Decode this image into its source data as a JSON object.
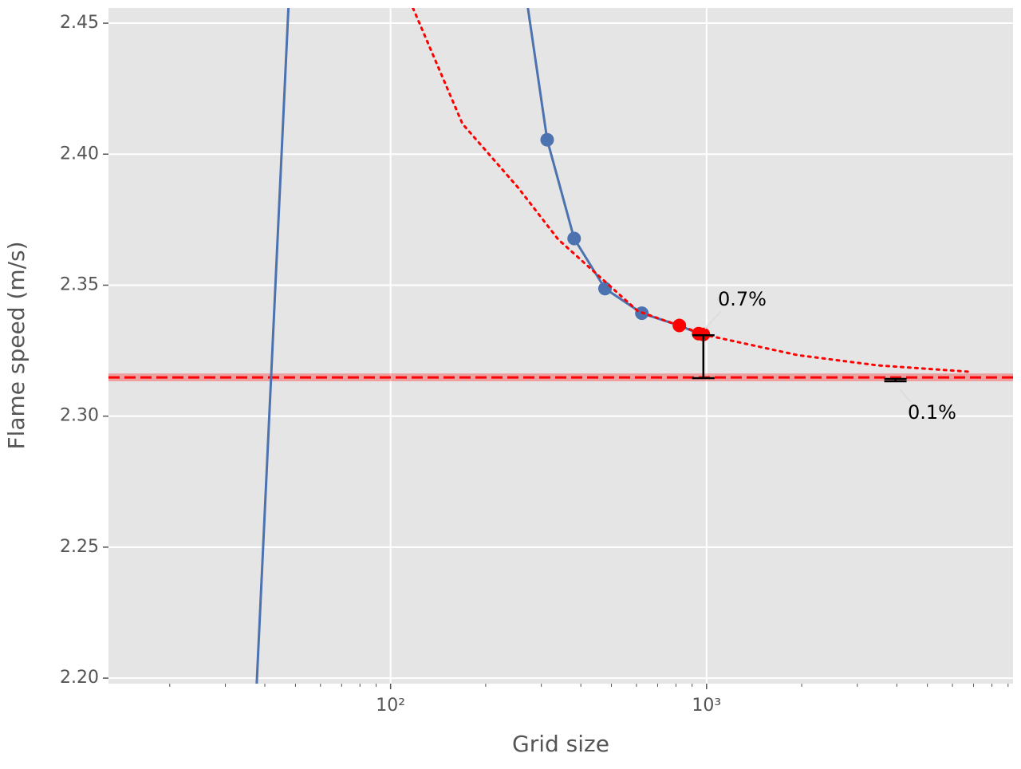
{
  "chart_data": {
    "type": "line",
    "xlabel": "Grid size",
    "ylabel": "Flame speed (m/s)",
    "xscale": "log",
    "grid": true,
    "xlim": [
      12.8,
      9330
    ],
    "ylim": [
      2.1979,
      2.4558
    ],
    "xticks": [
      {
        "value": 100,
        "label": "10²"
      },
      {
        "value": 1000,
        "label": "10³"
      }
    ],
    "xminorticks": [
      20,
      30,
      40,
      50,
      60,
      70,
      80,
      90,
      200,
      300,
      400,
      500,
      600,
      700,
      800,
      900,
      2000,
      3000,
      4000,
      5000,
      6000,
      7000,
      8000,
      9000
    ],
    "yticks": [
      {
        "value": 2.2,
        "label": "2.20"
      },
      {
        "value": 2.25,
        "label": "2.25"
      },
      {
        "value": 2.3,
        "label": "2.30"
      },
      {
        "value": 2.35,
        "label": "2.35"
      },
      {
        "value": 2.4,
        "label": "2.40"
      },
      {
        "value": 2.45,
        "label": "2.45"
      }
    ],
    "series": [
      {
        "style": "line",
        "color": "#4c72b0",
        "x": [
          37.7,
          47.5,
          null,
          272,
          313,
          381,
          477,
          624,
          820,
          944,
          977
        ],
        "values": [
          2.1979,
          2.4558,
          null,
          2.4558,
          2.4055,
          2.3678,
          2.3487,
          2.3393,
          2.3346,
          2.3315,
          2.3312
        ]
      },
      {
        "style": "markers",
        "color": "#4c72b0",
        "x": [
          313,
          381,
          477,
          624
        ],
        "values": [
          2.4055,
          2.3678,
          2.3487,
          2.3393
        ]
      },
      {
        "style": "markers",
        "color": "#ff0000",
        "x": [
          820,
          944,
          977
        ],
        "values": [
          2.3346,
          2.3315,
          2.3312
        ]
      },
      {
        "style": "dotted",
        "color": "#ff0000",
        "x": [
          117.7,
          168.8,
          253,
          339,
          606,
          1000,
          1941,
          3467,
          6886
        ],
        "values": [
          2.4558,
          2.4116,
          2.3873,
          2.3675,
          2.3401,
          2.3309,
          2.3233,
          2.3194,
          2.3169
        ]
      }
    ],
    "reference": {
      "value": 2.3148,
      "band": [
        2.3133,
        2.3163
      ],
      "color": "#ff0000"
    },
    "error_bars": [
      {
        "x": 977,
        "low": 2.3145,
        "high": 2.3309,
        "annotation": "0.7%"
      },
      {
        "x": 3960,
        "low": 2.3133,
        "high": 2.3142,
        "annotation": "0.1%"
      }
    ]
  }
}
